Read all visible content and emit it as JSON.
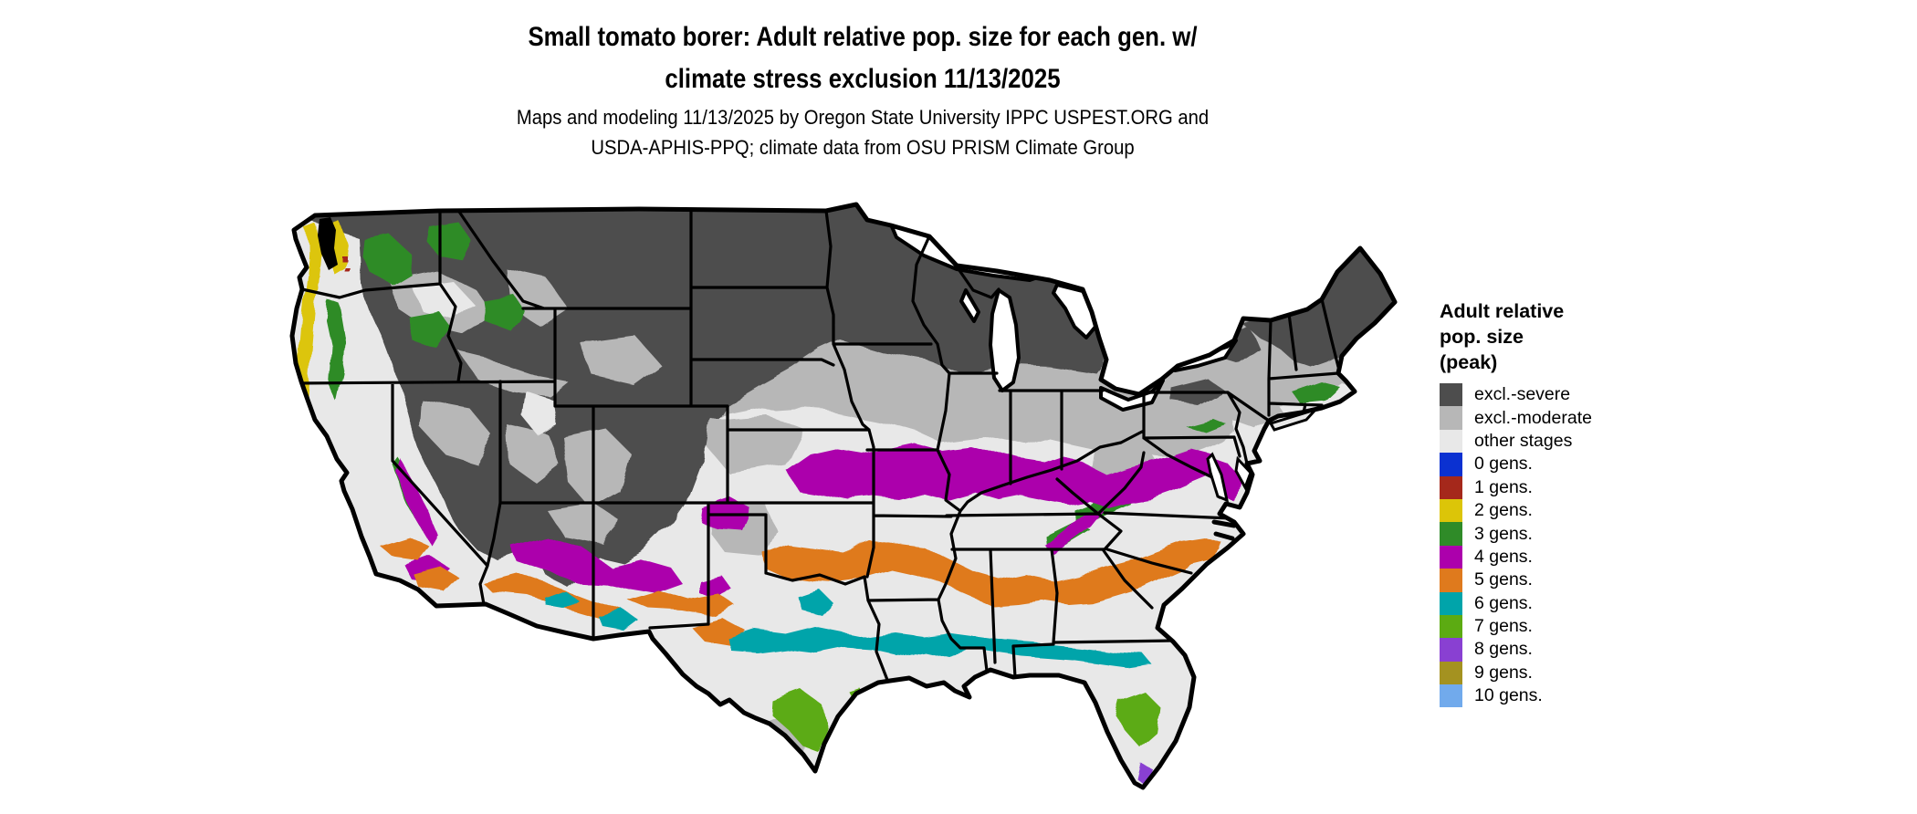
{
  "title": {
    "line1": "Small tomato borer: Adult relative pop. size for each gen. w/",
    "line2": "climate stress exclusion 11/13/2025"
  },
  "subtitle": {
    "line1": "Maps and modeling 11/13/2025 by Oregon State University IPPC USPEST.ORG and",
    "line2": "USDA-APHIS-PPQ; climate data from OSU PRISM Climate Group"
  },
  "map": {
    "region": "Contiguous United States",
    "date_shown": "11/13/2025",
    "background": "#ffffff",
    "land_base": "#e8e8e8",
    "border_color": "#000000",
    "colors": {
      "severe": "#4d4d4d",
      "moderate": "#b7b7b7",
      "other": "#e8e8e8",
      "gens0": "#0b31d1",
      "gens1": "#a5281b",
      "gens2": "#dcc508",
      "gens3": "#2f8b28",
      "gens4": "#ac00ac",
      "gens5": "#df7a1d",
      "gens6": "#00a4aa",
      "gens7": "#5cab12",
      "gens8": "#8940d2",
      "gens9": "#a49220",
      "gens10": "#71aaec",
      "water": "#ffffff"
    }
  },
  "legend": {
    "title_lines": [
      "Adult relative",
      "pop. size",
      "(peak)"
    ],
    "items": [
      {
        "key": "severe",
        "label": "excl.-severe",
        "color": "#4d4d4d"
      },
      {
        "key": "moderate",
        "label": "excl.-moderate",
        "color": "#b7b7b7"
      },
      {
        "key": "other",
        "label": "other stages",
        "color": "#e8e8e8"
      },
      {
        "key": "gens0",
        "label": "0 gens.",
        "color": "#0b31d1"
      },
      {
        "key": "gens1",
        "label": "1 gens.",
        "color": "#a5281b"
      },
      {
        "key": "gens2",
        "label": "2 gens.",
        "color": "#dcc508"
      },
      {
        "key": "gens3",
        "label": "3 gens.",
        "color": "#2f8b28"
      },
      {
        "key": "gens4",
        "label": "4 gens.",
        "color": "#ac00ac"
      },
      {
        "key": "gens5",
        "label": "5 gens.",
        "color": "#df7a1d"
      },
      {
        "key": "gens6",
        "label": "6 gens.",
        "color": "#00a4aa"
      },
      {
        "key": "gens7",
        "label": "7 gens.",
        "color": "#5cab12"
      },
      {
        "key": "gens8",
        "label": "8 gens.",
        "color": "#8940d2"
      },
      {
        "key": "gens9",
        "label": "9 gens.",
        "color": "#a49220"
      },
      {
        "key": "gens10",
        "label": "10 gens.",
        "color": "#71aaec"
      }
    ]
  }
}
